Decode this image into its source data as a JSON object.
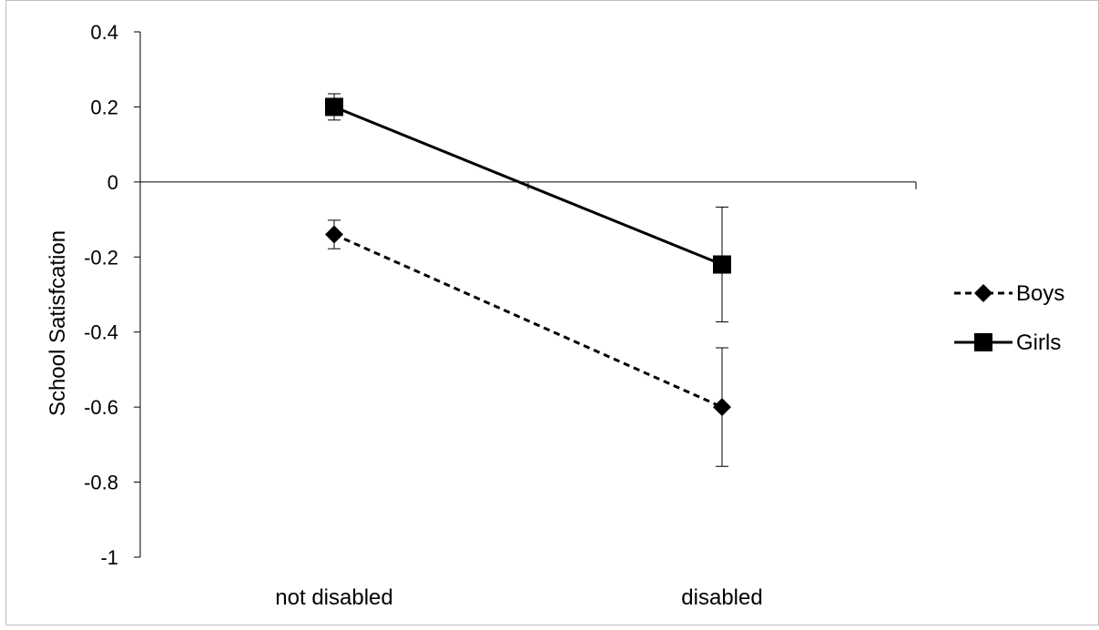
{
  "chart_data": {
    "type": "line",
    "title": "",
    "xlabel": "",
    "ylabel": "School Satisfcation",
    "categories": [
      "not disabled",
      "disabled"
    ],
    "ylim": [
      -1,
      0.4
    ],
    "yticks": [
      0.4,
      0.2,
      0,
      -0.2,
      -0.4,
      -0.6,
      -0.8,
      -1
    ],
    "ytick_labels": [
      "0.4",
      "0.2",
      "0",
      "-0.2",
      "-0.4",
      "-0.6",
      "-0.8",
      "-1"
    ],
    "grid": false,
    "legend": "right",
    "series": [
      {
        "name": "Boys",
        "marker": "diamond",
        "line": "dashed",
        "values": [
          -0.14,
          -0.6
        ],
        "error": [
          0.038,
          0.158
        ]
      },
      {
        "name": "Girls",
        "marker": "square",
        "line": "solid",
        "values": [
          0.2,
          -0.22
        ],
        "error": [
          0.035,
          0.153
        ]
      }
    ]
  }
}
